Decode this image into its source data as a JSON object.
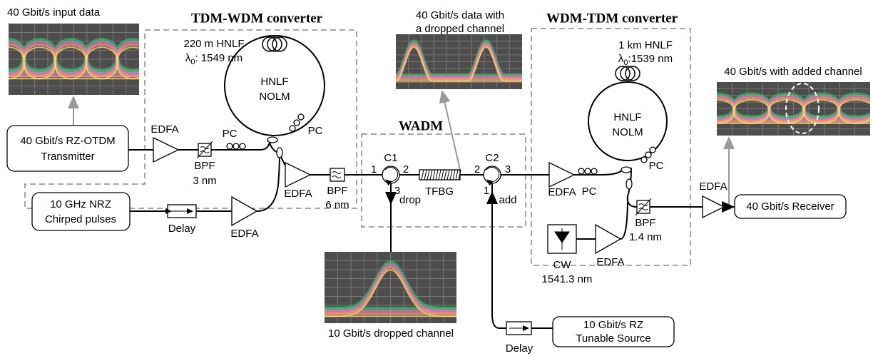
{
  "eyes": {
    "input": "40 Gbit/s input data",
    "dropped_data": [
      "40 Gbit/s data with",
      "a dropped channel"
    ],
    "added": "40 Gbit/s with added channel",
    "dropped_channel": "10 Gbit/s dropped channel"
  },
  "transmitter": [
    "40 Gbit/s RZ-OTDM",
    "Transmitter"
  ],
  "pulses": [
    "10 GHz NRZ",
    "Chirped pulses"
  ],
  "tdm_wdm": {
    "title": "TDM-WDM converter",
    "hnlf": "220 m HNLF",
    "lambda": {
      "symbol": "λ",
      "sub": "0",
      "value": ": 1549 nm"
    },
    "loop": [
      "HNLF",
      "NOLM"
    ],
    "pc_in": "PC",
    "pc_loop": "PC",
    "edfa_in": "EDFA",
    "edfa_out": "EDFA",
    "edfa_pump": "EDFA",
    "bpf_in": [
      "BPF",
      "3 nm"
    ],
    "bpf_out": [
      "BPF",
      "6 nm"
    ],
    "delay": "Delay"
  },
  "wadm": {
    "title": "WADM",
    "c1": "C1",
    "c1_ports": [
      "1",
      "2",
      "3"
    ],
    "tfbg": "TFBG",
    "c2": "C2",
    "c2_ports": [
      "2",
      "3",
      "1"
    ],
    "drop": "drop",
    "add": "add"
  },
  "wdm_tdm": {
    "title": "WDM-TDM converter",
    "hnlf": "1 km HNLF",
    "lambda": {
      "symbol": "λ",
      "sub": "0",
      "value": ":1539 nm"
    },
    "loop": [
      "HNLF",
      "NOLM"
    ],
    "pc_in": "PC",
    "pc_loop": "PC",
    "edfa_in": "EDFA",
    "edfa_cw": "EDFA",
    "bpf": [
      "BPF",
      "1.4 nm"
    ],
    "cw": "CW",
    "cw_wavelength": "1541.3 nm"
  },
  "edfa_receiver": "EDFA",
  "receiver": "40 Gbit/s Receiver",
  "source": [
    "10 Gbit/s RZ",
    "Tunable Source"
  ],
  "source_delay": "Delay"
}
